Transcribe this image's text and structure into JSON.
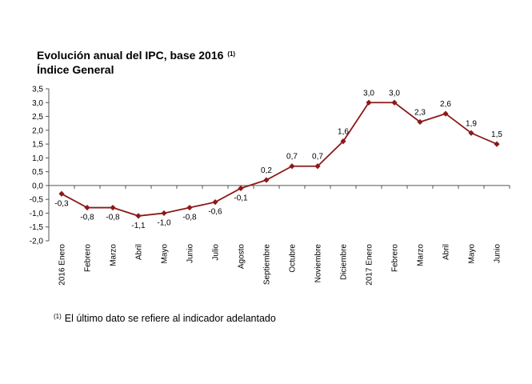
{
  "chart_data": {
    "type": "line",
    "title": "Evolución anual del IPC, base 2016",
    "title_note": "(1)",
    "subtitle": "Índice General",
    "categories": [
      "2016 Enero",
      "Febrero",
      "Marzo",
      "Abril",
      "Mayo",
      "Junio",
      "Julio",
      "Agosto",
      "Septiembre",
      "Octubre",
      "Noviembre",
      "Diciembre",
      "2017 Enero",
      "Febrero",
      "Marzo",
      "Abril",
      "Mayo",
      "Junio"
    ],
    "values": [
      -0.3,
      -0.8,
      -0.8,
      -1.1,
      -1.0,
      -0.8,
      -0.6,
      -0.1,
      0.2,
      0.7,
      0.7,
      1.6,
      3.0,
      3.0,
      2.3,
      2.6,
      1.9,
      1.5
    ],
    "data_labels": [
      "-0,3",
      "-0,8",
      "-0,8",
      "-1,1",
      "-1,0",
      "-0,8",
      "-0,6",
      "-0,1",
      "0,2",
      "0,7",
      "0,7",
      "1,6",
      "3,0",
      "3,0",
      "2,3",
      "2,6",
      "1,9",
      "1,5"
    ],
    "yticks": [
      "3,5",
      "3,0",
      "2,5",
      "2,0",
      "1,5",
      "1,0",
      "0,5",
      "0,0",
      "-0,5",
      "-1,0",
      "-1,5",
      "-2,0"
    ],
    "ylim": [
      -2.0,
      3.5
    ],
    "line_color": "#8B1A1A",
    "legend": "none",
    "grid": false
  },
  "footnote": {
    "mark": "(1)",
    "text": "El último dato se refiere al indicador adelantado"
  }
}
